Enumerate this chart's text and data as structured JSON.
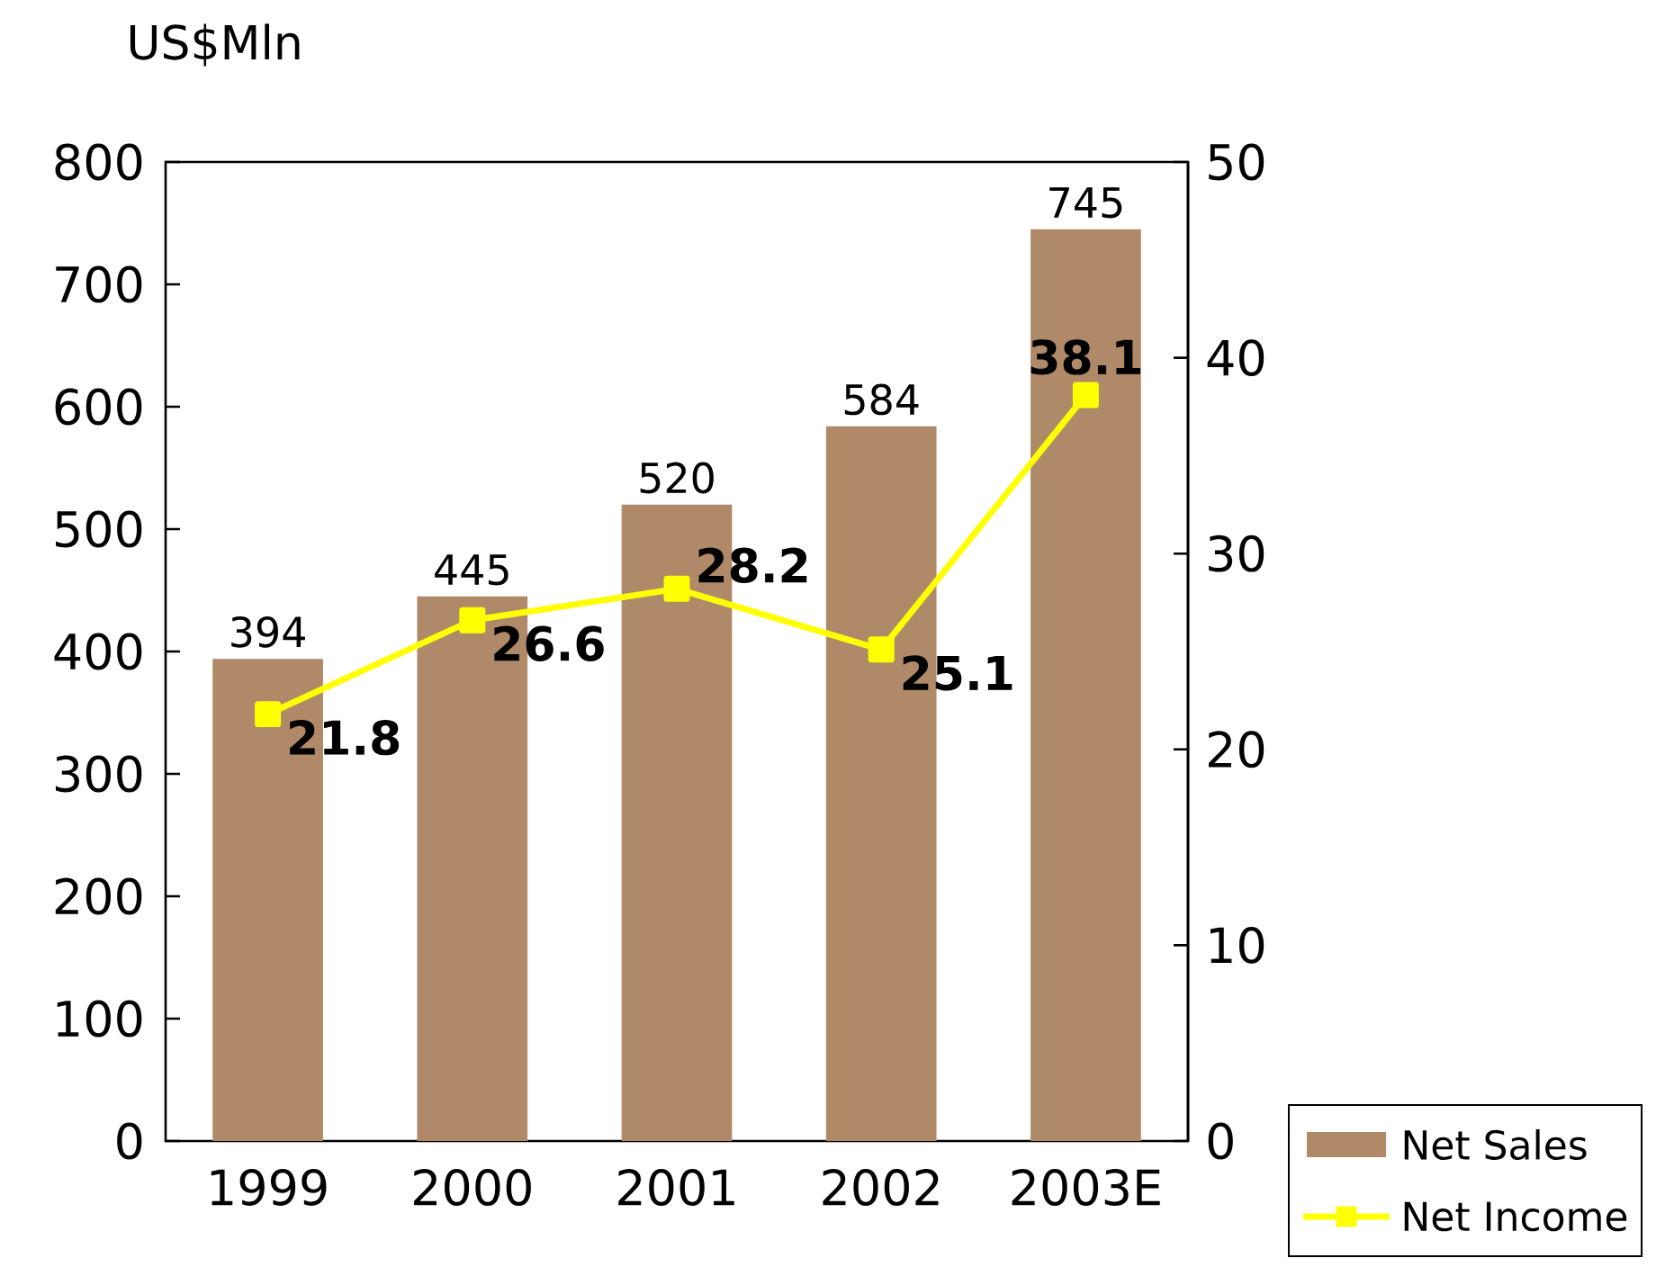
{
  "chart_data": {
    "type": "bar",
    "ylabel": "US$Mln",
    "categories": [
      "1999",
      "2000",
      "2001",
      "2002",
      "2003E"
    ],
    "series": [
      {
        "name": "Net Sales",
        "color": "#b08a68",
        "values": [
          394,
          445,
          520,
          584,
          745
        ]
      },
      {
        "name": "Net Income",
        "type": "line",
        "axis": "y2",
        "color": "#ffff00",
        "marker": "square",
        "values": [
          21.8,
          26.6,
          28.2,
          25.1,
          38.1
        ]
      }
    ],
    "ylim": [
      0,
      800
    ],
    "yticks": [
      0,
      100,
      200,
      300,
      400,
      500,
      600,
      700,
      800
    ],
    "y2lim": [
      0,
      50
    ],
    "y2ticks": [
      0,
      10,
      20,
      30,
      40,
      50
    ],
    "data_labels": true,
    "legend": "bottom right"
  }
}
